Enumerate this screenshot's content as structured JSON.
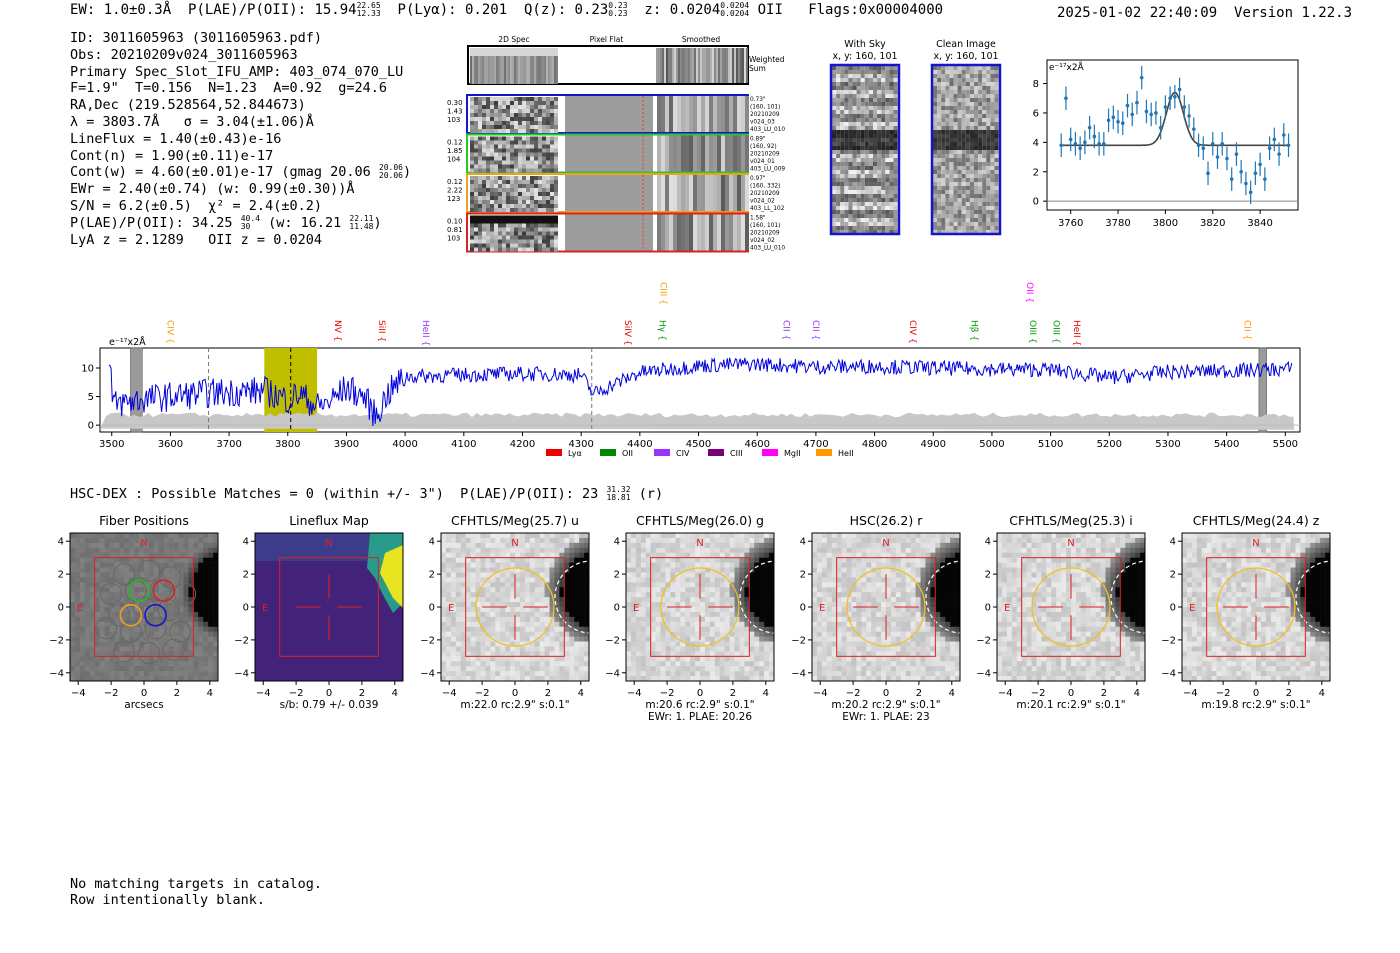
{
  "header": {
    "ew": "EW: 1.0±0.3Å",
    "plae_label": "P(LAE)/P(OII): 15.94",
    "plae_hi": "22.65",
    "plae_lo": "12.33",
    "plya": "P(Lyα): 0.201",
    "qz_label": "Q(z): 0.23",
    "qz_hi": "0.23",
    "qz_lo": "0.23",
    "z_label": "z: 0.0204",
    "z_hi": "0.0204",
    "z_lo": "0.0204",
    "z_line": "OII",
    "flags": "Flags:0x00004000",
    "datetime": "2025-01-02 22:40:09",
    "version": "Version 1.22.3"
  },
  "info": {
    "id": "ID: 3011605963 (3011605963.pdf)",
    "obs": "Obs: 20210209v024_3011605963",
    "primary": "Primary Spec_Slot_IFU_AMP: 403_074_070_LU",
    "fwhm": "F=1.9\"  T=0.156  N=1.23  A=0.92  g=24.6",
    "radec": "RA,Dec (219.528564,52.844673)",
    "lambda": "λ = 3803.7Å   σ = 3.04(±1.06)Å",
    "lineflux": "LineFlux = 1.40(±0.43)e-16",
    "contn": "Cont(n) = 1.90(±0.11)e-17",
    "contw": "Cont(w) = 4.60(±0.01)e-17 (gmag 20.06",
    "contw_hi": "20.06",
    "contw_lo": "20.06",
    "ewr": "EWr = 2.40(±0.74) (w: 0.99(±0.30))Å",
    "sn": "S/N = 6.2(±0.5)  χ² = 2.4(±0.2)",
    "plae": "P(LAE)/P(OII): 34.25",
    "plae_hi": "40.4",
    "plae_lo": "30",
    "plae_w": "(w: 16.21",
    "plae_w_hi": "22.11",
    "plae_w_lo": "11.48",
    "lya": "LyA z = 2.1289   OII z = 0.0204"
  },
  "cutouts": {
    "col_labels": [
      "2D Spec",
      "Pixel Flat",
      "Smoothed"
    ],
    "weighted_sum": [
      "Weighted",
      "Sum"
    ],
    "rows": [
      {
        "vals": [
          "0.30",
          "1.43",
          "103"
        ],
        "meta": [
          "0.73\"",
          "(160, 101)",
          "20210209",
          "v024_03",
          "403_LU_010"
        ],
        "color": "#1515cc"
      },
      {
        "vals": [
          "0.12",
          "1.85",
          "104"
        ],
        "meta": [
          "0.89\"",
          "(160, 92)",
          "20210209",
          "v024_01",
          "403_LU_009"
        ],
        "color": "#22cc22"
      },
      {
        "vals": [
          "0.12",
          "2.22",
          "123"
        ],
        "meta": [
          "0.97\"",
          "(160, 332)",
          "20210209",
          "v024_02",
          "403_LL_102"
        ],
        "color": "#f0a020"
      },
      {
        "vals": [
          "0.10",
          "0.81",
          "103"
        ],
        "meta": [
          "1.58\"",
          "(160, 101)",
          "20210209",
          "v024_02",
          "403_LU_010"
        ],
        "color": "#dd2020"
      }
    ],
    "sky_title": [
      "With Sky",
      "x, y: 160, 101"
    ],
    "clean_title": [
      "Clean Image",
      "x, y: 160, 101"
    ]
  },
  "zoom_plot": {
    "unit": "e⁻¹⁷x2Å",
    "chart_data": {
      "type": "scatter",
      "x": [
        3756,
        3758,
        3760,
        3762,
        3764,
        3766,
        3768,
        3770,
        3772,
        3774,
        3776,
        3778,
        3780,
        3782,
        3784,
        3786,
        3788,
        3790,
        3792,
        3794,
        3796,
        3798,
        3800,
        3802,
        3804,
        3806,
        3808,
        3810,
        3812,
        3814,
        3816,
        3818,
        3820,
        3822,
        3824,
        3826,
        3828,
        3830,
        3832,
        3834,
        3836,
        3838,
        3840,
        3842,
        3844,
        3846,
        3848,
        3850,
        3852
      ],
      "y": [
        3.8,
        7.0,
        4.2,
        3.9,
        3.6,
        4.0,
        5.0,
        4.4,
        3.9,
        3.9,
        5.5,
        5.7,
        5.4,
        5.3,
        6.5,
        5.9,
        6.7,
        8.4,
        6.1,
        5.9,
        6.0,
        5.0,
        6.4,
        7.0,
        7.1,
        7.6,
        6.4,
        5.8,
        4.9,
        3.8,
        3.6,
        1.9,
        3.9,
        3.0,
        3.9,
        2.9,
        1.5,
        3.2,
        2.0,
        1.2,
        0.6,
        1.9,
        2.5,
        1.5,
        3.6,
        4.2,
        3.2,
        4.5,
        3.8
      ],
      "model_center": 3804,
      "model_continuum": 3.8,
      "model_peak": 7.4,
      "xlim": [
        3750,
        3856
      ],
      "ylim": [
        -0.6,
        9.6
      ],
      "xticks": [
        3760,
        3780,
        3800,
        3820,
        3840
      ],
      "yticks": [
        0,
        2,
        4,
        6,
        8
      ]
    }
  },
  "full_spectrum": {
    "unit": "e⁻¹⁷x2Å",
    "chart_data": {
      "type": "line",
      "xlim": [
        3480,
        5525
      ],
      "ylim": [
        -1.2,
        13.5
      ],
      "xticks": [
        3500,
        3600,
        3700,
        3800,
        3900,
        4000,
        4100,
        4200,
        4300,
        4400,
        4500,
        4600,
        4700,
        4800,
        4900,
        5000,
        5100,
        5200,
        5300,
        5400,
        5500
      ],
      "yticks": [
        0,
        5,
        10
      ],
      "anchors_x": [
        3500,
        3550,
        3600,
        3650,
        3700,
        3760,
        3800,
        3820,
        3850,
        3870,
        3900,
        3930,
        3950,
        3970,
        4000,
        4100,
        4200,
        4300,
        4320,
        4400,
        4500,
        4600,
        4700,
        4800,
        4900,
        5000,
        5100,
        5200,
        5300,
        5400,
        5500
      ],
      "anchors_y": [
        3.5,
        4.5,
        5.0,
        5.5,
        5.8,
        6.0,
        4.5,
        5.5,
        3.2,
        4.0,
        6.5,
        5.0,
        1.5,
        5.5,
        8.5,
        8.8,
        9.0,
        8.8,
        5.5,
        9.2,
        10.4,
        10.7,
        10.2,
        10.3,
        10.0,
        9.8,
        9.7,
        8.3,
        9.3,
        9.5,
        9.8
      ],
      "shaded_band": [
        3760,
        3850
      ],
      "masked_regions": [
        [
          3532,
          3552
        ],
        [
          5455,
          5468
        ]
      ],
      "dashed_lines": [
        3665,
        3805,
        4318
      ],
      "line_labels": [
        {
          "label": "CIV",
          "x": 3590,
          "color": "#ff9900",
          "tier": 2
        },
        {
          "label": "NV",
          "x": 3875,
          "color": "#ee0000",
          "tier": 2
        },
        {
          "label": "SiII",
          "x": 3950,
          "color": "#ee0000",
          "tier": 2
        },
        {
          "label": "HeII",
          "x": 4025,
          "color": "#9933ff",
          "tier": 2
        },
        {
          "label": "CIII",
          "x": 4430,
          "color": "#ff9900",
          "tier": 0
        },
        {
          "label": "SiIV",
          "x": 4370,
          "color": "#ee0000",
          "tier": 2
        },
        {
          "label": "Hγ",
          "x": 4428,
          "color": "#009900",
          "tier": 2
        },
        {
          "label": "CII",
          "x": 4640,
          "color": "#9933ff",
          "tier": 2
        },
        {
          "label": "CII",
          "x": 4690,
          "color": "#9933ff",
          "tier": 2
        },
        {
          "label": "CIV",
          "x": 4855,
          "color": "#ee0000",
          "tier": 2
        },
        {
          "label": "Hβ",
          "x": 4960,
          "color": "#009900",
          "tier": 2
        },
        {
          "label": "OII",
          "x": 5055,
          "color": "#ff00ff",
          "tier": 0
        },
        {
          "label": "OIII",
          "x": 5060,
          "color": "#009900",
          "tier": 2
        },
        {
          "label": "OIII",
          "x": 5100,
          "color": "#009900",
          "tier": 2
        },
        {
          "label": "HeII",
          "x": 5135,
          "color": "#ee0000",
          "tier": 2
        },
        {
          "label": "CII",
          "x": 5425,
          "color": "#ff9900",
          "tier": 2
        }
      ],
      "legend": [
        {
          "label": "Lyα",
          "color": "#ee0000"
        },
        {
          "label": "OII",
          "color": "#008800"
        },
        {
          "label": "CIV",
          "color": "#9933ff"
        },
        {
          "label": "CIII",
          "color": "#7a007a"
        },
        {
          "label": "MgII",
          "color": "#ff00ff"
        },
        {
          "label": "HeII",
          "color": "#ff9900"
        }
      ]
    }
  },
  "hsc": {
    "title": "HSC-DEX : Possible Matches = 0 (within +/- 3\")  P(LAE)/P(OII): 23",
    "plae_hi": "31.32",
    "plae_lo": "18.81",
    "band": "(r)",
    "panels": [
      {
        "title": "Fiber Positions",
        "caption": [
          "arcsecs"
        ],
        "kind": "fiber"
      },
      {
        "title": "Lineflux Map",
        "caption": [
          "s/b: 0.79 +/- 0.039"
        ],
        "kind": "lineflux"
      },
      {
        "title": "CFHTLS/Meg(25.7) u",
        "caption": [
          "m:22.0 rc:2.9\"  s:0.1\""
        ],
        "kind": "image"
      },
      {
        "title": "CFHTLS/Meg(26.0) g",
        "caption": [
          "m:20.6 rc:2.9\"  s:0.1\"",
          "EWr: 1. PLAE: 20.26"
        ],
        "kind": "image"
      },
      {
        "title": "HSC(26.2) r",
        "caption": [
          "m:20.2 rc:2.9\"  s:0.1\"",
          "EWr: 1. PLAE: 23"
        ],
        "kind": "image"
      },
      {
        "title": "CFHTLS/Meg(25.3) i",
        "caption": [
          "m:20.1 rc:2.9\"  s:0.1\""
        ],
        "kind": "image"
      },
      {
        "title": "CFHTLS/Meg(24.4) z",
        "caption": [
          "m:19.8 rc:2.9\"  s:0.1\""
        ],
        "kind": "image"
      }
    ],
    "ticks": [
      "−4",
      "−2",
      "0",
      "2",
      "4"
    ],
    "north": "N",
    "east": "E"
  },
  "footer": {
    "line1": "No matching targets in catalog.",
    "line2": "Row intentionally blank."
  }
}
